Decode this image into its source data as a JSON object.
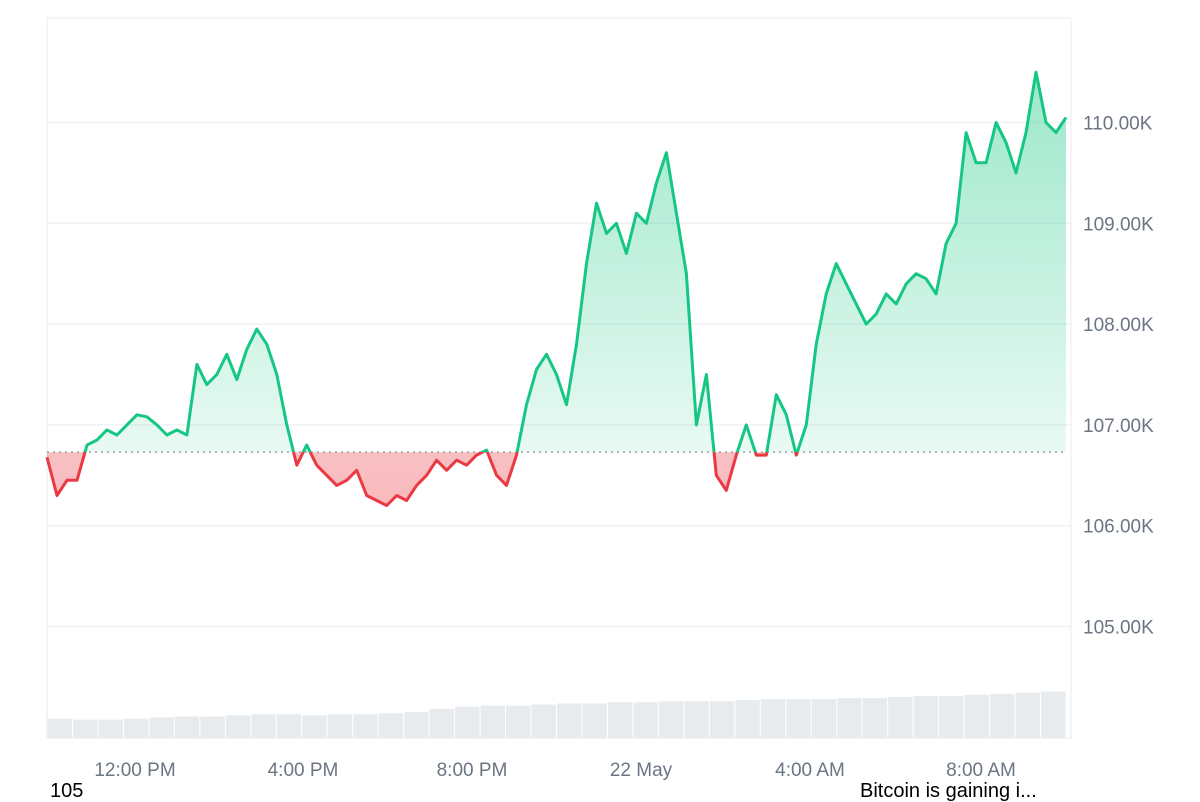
{
  "chart_data": {
    "type": "area",
    "baseline": 106730,
    "ylim": [
      103900,
      111000
    ],
    "y_ticks": [
      {
        "value": 110000,
        "label": "110.00K"
      },
      {
        "value": 109000,
        "label": "109.00K"
      },
      {
        "value": 108000,
        "label": "108.00K"
      },
      {
        "value": 107000,
        "label": "107.00K"
      },
      {
        "value": 106000,
        "label": "106.00K"
      },
      {
        "value": 105000,
        "label": "105.00K"
      }
    ],
    "x_ticks": [
      "12:00 PM",
      "4:00 PM",
      "8:00 PM",
      "22 May",
      "4:00 AM",
      "8:00 AM"
    ],
    "grid": true,
    "colors": {
      "up": "#16c784",
      "down": "#ea3943",
      "baseline": "#9aa0a6",
      "grid": "#eff2f5",
      "volume": "#e8ebee"
    },
    "series": [
      {
        "values": [
          106680,
          106300,
          106450,
          106450,
          106800,
          106850,
          106950,
          106900,
          107000,
          107100,
          107080,
          107000,
          106900,
          106950,
          106900,
          107600,
          107400,
          107500,
          107700,
          107450,
          107750,
          107950,
          107800,
          107500,
          107000,
          106600,
          106800,
          106600,
          106500,
          106400,
          106450,
          106550,
          106300,
          106250,
          106200,
          106300,
          106250,
          106400,
          106500,
          106650,
          106550,
          106650,
          106600,
          106700,
          106750,
          106500,
          106400,
          106700,
          107200,
          107550,
          107700,
          107500,
          107200,
          107800,
          108600,
          109200,
          108900,
          109000,
          108700,
          109100,
          109000,
          109400,
          109700,
          109100,
          108500,
          107000,
          107500,
          106500,
          106350,
          106700,
          107000,
          106700,
          106700,
          107300,
          107100,
          106700,
          107000,
          107800,
          108300,
          108600,
          108400,
          108200,
          108000,
          108100,
          108300,
          108200,
          108400,
          108500,
          108450,
          108300,
          108800,
          109000,
          109900,
          109600,
          109600,
          110000,
          109800,
          109500,
          109900,
          110500,
          110000,
          109900,
          110050
        ]
      }
    ],
    "volume": [
      0.18,
      0.17,
      0.17,
      0.18,
      0.19,
      0.2,
      0.2,
      0.21,
      0.22,
      0.22,
      0.21,
      0.22,
      0.22,
      0.23,
      0.24,
      0.27,
      0.29,
      0.3,
      0.3,
      0.31,
      0.32,
      0.32,
      0.33,
      0.33,
      0.34,
      0.34,
      0.34,
      0.35,
      0.36,
      0.36,
      0.36,
      0.37,
      0.37,
      0.38,
      0.39,
      0.39,
      0.4,
      0.41,
      0.42,
      0.43
    ]
  },
  "footer": {
    "left_text": "105",
    "right_text": "Bitcoin is gaining i..."
  }
}
